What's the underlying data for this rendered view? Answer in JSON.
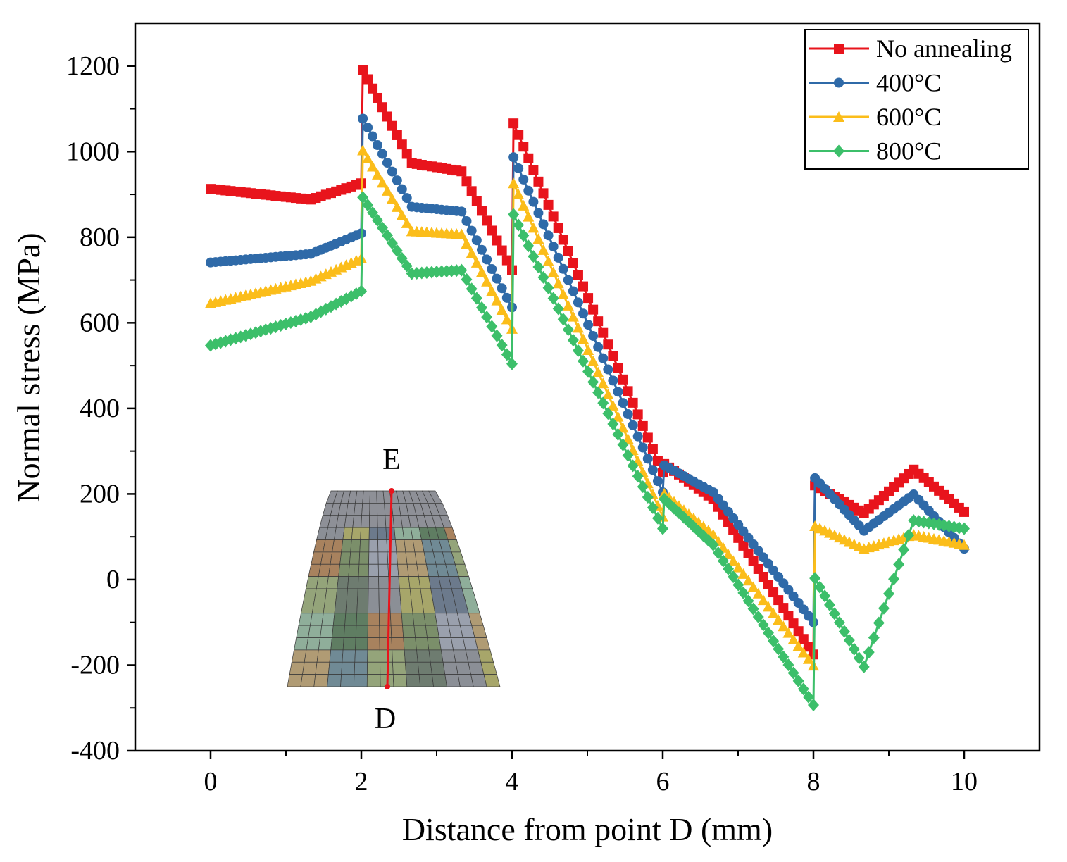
{
  "chart_data": {
    "type": "line",
    "title": "",
    "xlabel": "Distance from point D (mm)",
    "ylabel": "Normal stress (MPa)",
    "xlim": [
      -1,
      11
    ],
    "ylim": [
      -400,
      1300
    ],
    "xticks": [
      0,
      2,
      4,
      6,
      8,
      10
    ],
    "yticks": [
      -400,
      -200,
      0,
      200,
      400,
      600,
      800,
      1000,
      1200
    ],
    "grid": false,
    "legend_position": "top-right",
    "marker_spacing_mm": 0.0667,
    "series": [
      {
        "name": "No annealing",
        "color": "#e8141c",
        "marker": "square",
        "x": [
          0,
          1.33,
          2,
          2.02,
          2.67,
          3.33,
          4,
          4.02,
          6,
          6.02,
          6.67,
          8,
          8.02,
          8.67,
          9.33,
          10
        ],
        "y": [
          913,
          888,
          926,
          1191,
          973,
          954,
          723,
          1066,
          250,
          270,
          188,
          -175,
          220,
          155,
          257,
          158
        ]
      },
      {
        "name": "400°C",
        "color": "#2f6aa8",
        "marker": "circle",
        "x": [
          0,
          1.33,
          2,
          2.02,
          2.67,
          3.33,
          4,
          4.02,
          6,
          6.02,
          6.67,
          8,
          8.02,
          8.67,
          9.33,
          10
        ],
        "y": [
          741,
          761,
          809,
          1077,
          871,
          860,
          636,
          987,
          204,
          267,
          204,
          -100,
          237,
          114,
          199,
          72
        ]
      },
      {
        "name": "600°C",
        "color": "#fbbd1a",
        "marker": "triangle",
        "x": [
          0,
          1.33,
          2,
          2.02,
          2.67,
          3.33,
          4,
          4.02,
          6,
          6.02,
          6.67,
          8,
          8.02,
          8.67,
          9.33,
          10
        ],
        "y": [
          646,
          698,
          751,
          1003,
          814,
          807,
          586,
          926,
          147,
          201,
          105,
          -201,
          125,
          72,
          105,
          81
        ]
      },
      {
        "name": "800°C",
        "color": "#3cbf6a",
        "marker": "diamond",
        "x": [
          0,
          1.33,
          2,
          2.02,
          2.67,
          3.33,
          4,
          4.02,
          6,
          6.02,
          6.67,
          8,
          8.02,
          8.67,
          9.33,
          10
        ],
        "y": [
          547,
          614,
          674,
          893,
          715,
          723,
          504,
          853,
          119,
          188,
          81,
          -293,
          3,
          -204,
          138,
          119
        ]
      }
    ],
    "inset": {
      "top_label": "E",
      "bottom_label": "D"
    }
  }
}
